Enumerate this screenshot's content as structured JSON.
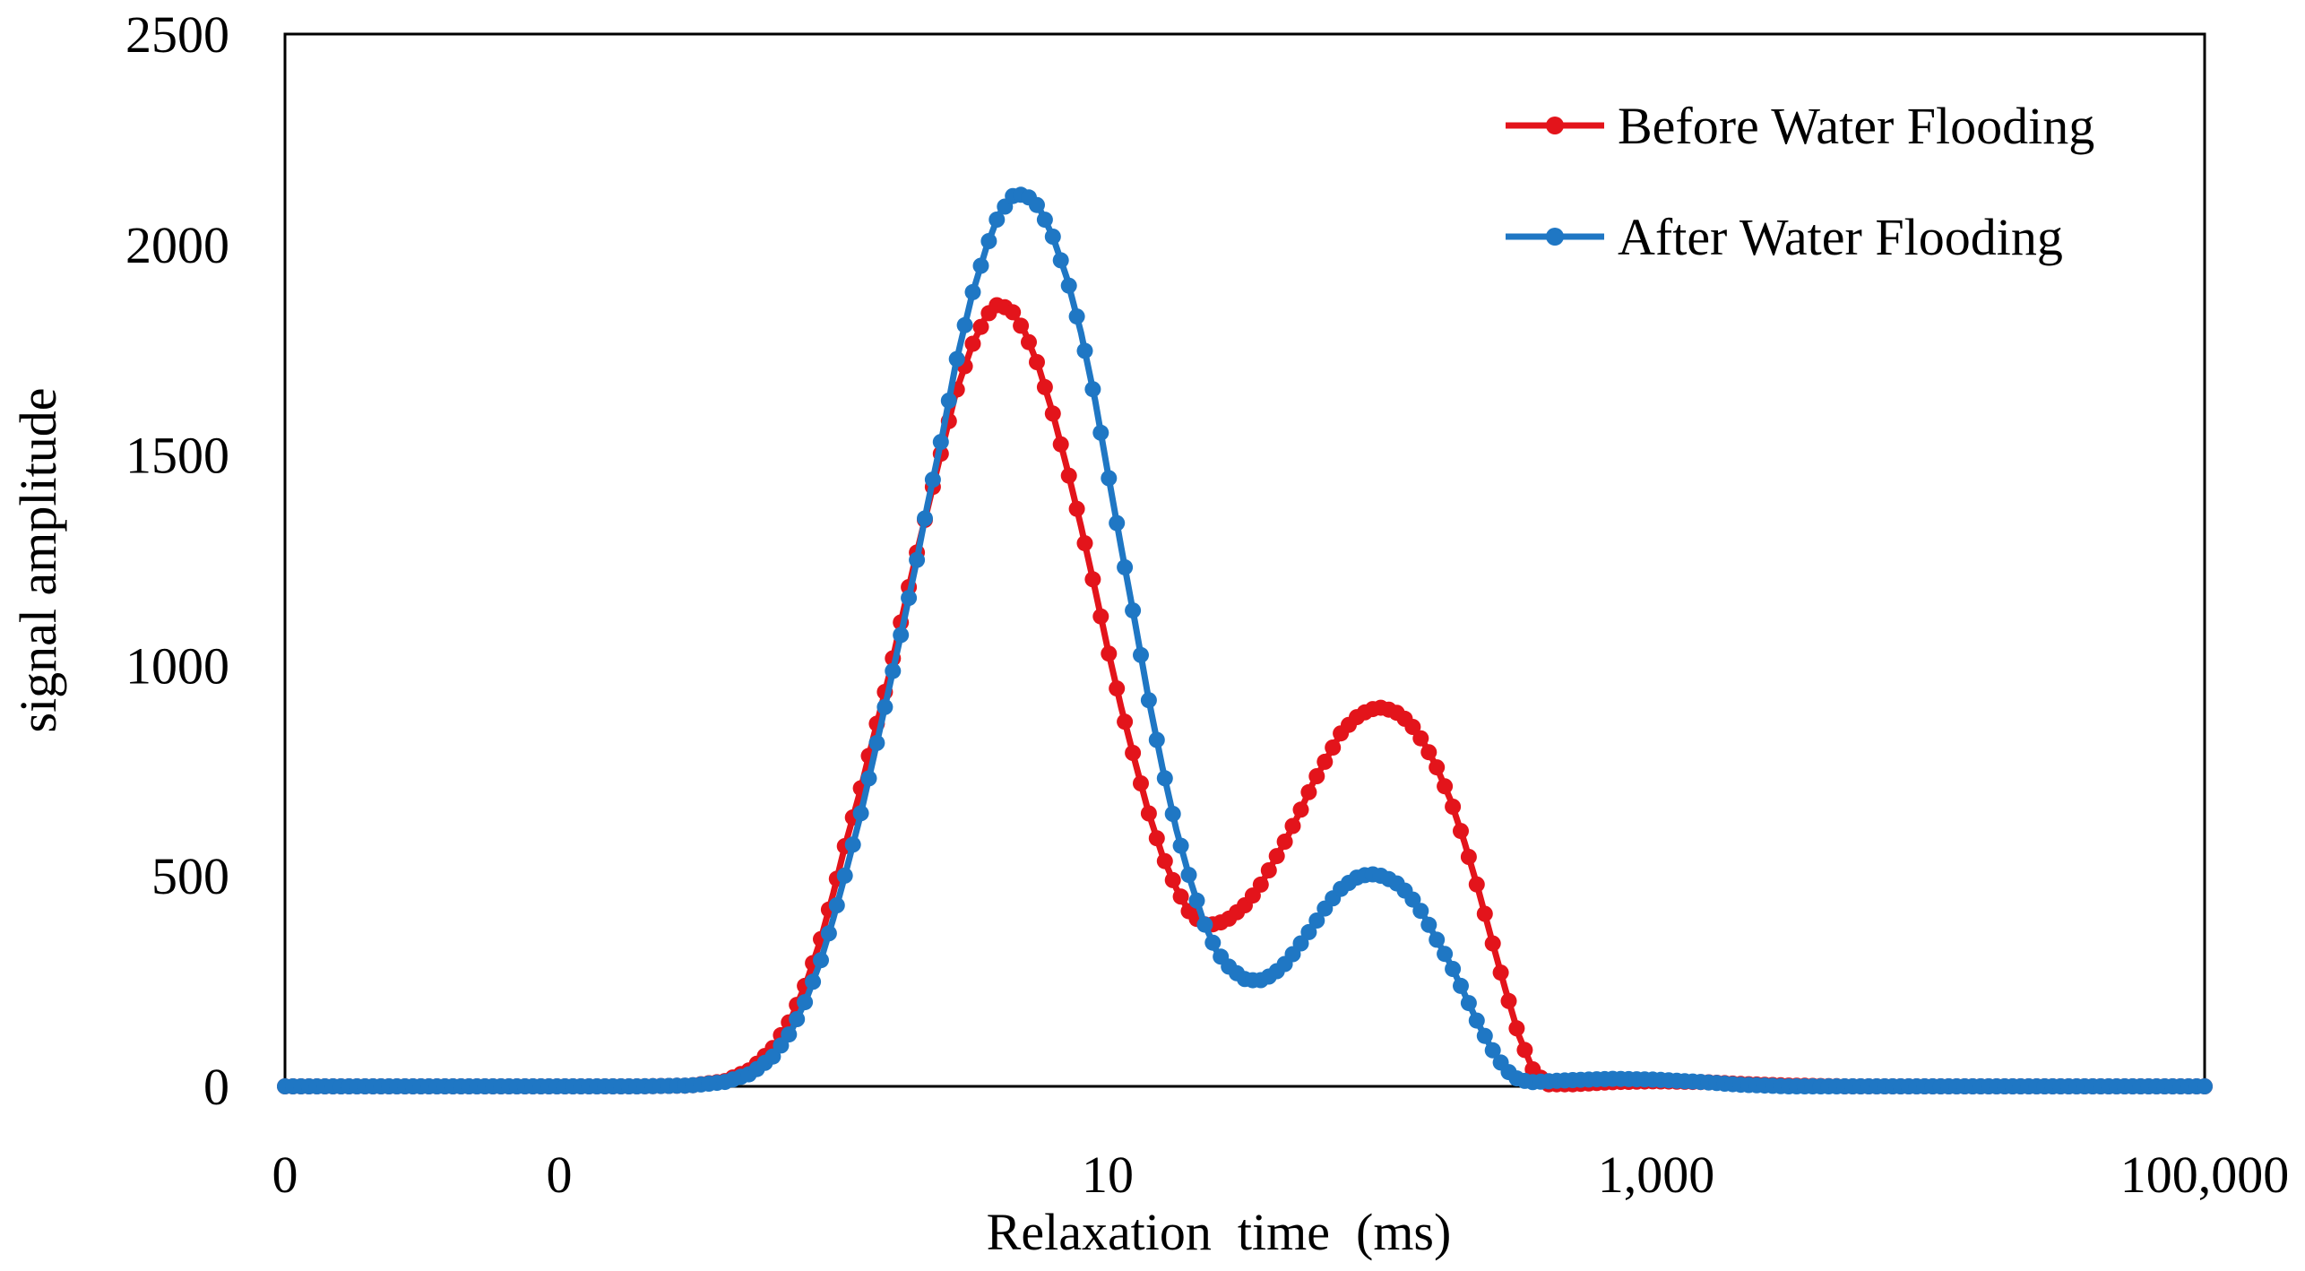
{
  "chart_data": {
    "type": "line",
    "title": "",
    "xlabel": "Relaxation  time  (ms)",
    "ylabel": "signal amplitude",
    "x_scale": "log",
    "xlim": [
      0.01,
      100000
    ],
    "ylim": [
      0,
      2500
    ],
    "x_ticks": [
      0.01,
      0.1,
      10,
      1000,
      100000
    ],
    "x_tick_labels": [
      "0",
      "0",
      "10",
      "1,000",
      "100,000"
    ],
    "y_ticks": [
      0,
      500,
      1000,
      1500,
      2000,
      2500
    ],
    "y_tick_labels": [
      "0",
      "500",
      "1000",
      "1500",
      "2000",
      "2500"
    ],
    "grid": false,
    "legend_position": "top-right",
    "series": [
      {
        "name": "Before Water Flooding",
        "color": "#e3141b",
        "points": [
          [
            0.01,
            0
          ],
          [
            0.02,
            0
          ],
          [
            0.05,
            0
          ],
          [
            0.1,
            0
          ],
          [
            0.2,
            0
          ],
          [
            0.3,
            2
          ],
          [
            0.4,
            12
          ],
          [
            0.5,
            40
          ],
          [
            0.6,
            90
          ],
          [
            0.7,
            160
          ],
          [
            0.8,
            250
          ],
          [
            0.9,
            350
          ],
          [
            1.0,
            460
          ],
          [
            1.1,
            570
          ],
          [
            1.25,
            700
          ],
          [
            1.4,
            830
          ],
          [
            1.6,
            980
          ],
          [
            1.8,
            1130
          ],
          [
            2.0,
            1260
          ],
          [
            2.2,
            1370
          ],
          [
            2.5,
            1520
          ],
          [
            2.8,
            1650
          ],
          [
            3.2,
            1760
          ],
          [
            3.6,
            1830
          ],
          [
            4.0,
            1860
          ],
          [
            4.5,
            1840
          ],
          [
            5.0,
            1790
          ],
          [
            5.6,
            1710
          ],
          [
            6.3,
            1600
          ],
          [
            7.1,
            1470
          ],
          [
            8.0,
            1330
          ],
          [
            9.0,
            1180
          ],
          [
            10.0,
            1040
          ],
          [
            11.2,
            900
          ],
          [
            12.6,
            770
          ],
          [
            14.1,
            650
          ],
          [
            15.8,
            550
          ],
          [
            17.8,
            470
          ],
          [
            20.0,
            410
          ],
          [
            22.4,
            385
          ],
          [
            25.0,
            385
          ],
          [
            28.0,
            400
          ],
          [
            31.6,
            430
          ],
          [
            35.5,
            470
          ],
          [
            40.0,
            530
          ],
          [
            45.0,
            590
          ],
          [
            50.0,
            650
          ],
          [
            56.0,
            720
          ],
          [
            63.0,
            780
          ],
          [
            71.0,
            840
          ],
          [
            80.0,
            875
          ],
          [
            90.0,
            895
          ],
          [
            100.0,
            900
          ],
          [
            112.0,
            890
          ],
          [
            126.0,
            865
          ],
          [
            141.0,
            820
          ],
          [
            158.0,
            760
          ],
          [
            178.0,
            680
          ],
          [
            200.0,
            580
          ],
          [
            224.0,
            470
          ],
          [
            251.0,
            350
          ],
          [
            282.0,
            230
          ],
          [
            316.0,
            120
          ],
          [
            355.0,
            40
          ],
          [
            400.0,
            5
          ],
          [
            500.0,
            5
          ],
          [
            700.0,
            10
          ],
          [
            1000.0,
            12
          ],
          [
            1500.0,
            10
          ],
          [
            2000.0,
            6
          ],
          [
            3000.0,
            2
          ],
          [
            5000.0,
            0
          ],
          [
            10000.0,
            0
          ],
          [
            30000.0,
            0
          ],
          [
            100000.0,
            0
          ]
        ]
      },
      {
        "name": "After Water Flooding",
        "color": "#1f77c4",
        "points": [
          [
            0.01,
            0
          ],
          [
            0.02,
            0
          ],
          [
            0.05,
            0
          ],
          [
            0.1,
            0
          ],
          [
            0.2,
            0
          ],
          [
            0.3,
            2
          ],
          [
            0.4,
            10
          ],
          [
            0.5,
            30
          ],
          [
            0.6,
            70
          ],
          [
            0.7,
            130
          ],
          [
            0.8,
            210
          ],
          [
            0.9,
            300
          ],
          [
            1.0,
            400
          ],
          [
            1.1,
            500
          ],
          [
            1.25,
            640
          ],
          [
            1.4,
            780
          ],
          [
            1.6,
            950
          ],
          [
            1.8,
            1100
          ],
          [
            2.0,
            1240
          ],
          [
            2.2,
            1380
          ],
          [
            2.5,
            1550
          ],
          [
            2.8,
            1720
          ],
          [
            3.2,
            1880
          ],
          [
            3.6,
            1990
          ],
          [
            4.0,
            2070
          ],
          [
            4.5,
            2115
          ],
          [
            5.0,
            2120
          ],
          [
            5.6,
            2090
          ],
          [
            6.3,
            2020
          ],
          [
            7.1,
            1920
          ],
          [
            8.0,
            1790
          ],
          [
            9.0,
            1630
          ],
          [
            10.0,
            1460
          ],
          [
            11.2,
            1280
          ],
          [
            12.6,
            1100
          ],
          [
            14.1,
            920
          ],
          [
            15.8,
            760
          ],
          [
            17.8,
            610
          ],
          [
            20.0,
            490
          ],
          [
            22.4,
            390
          ],
          [
            25.0,
            320
          ],
          [
            28.0,
            280
          ],
          [
            31.6,
            255
          ],
          [
            35.5,
            250
          ],
          [
            40.0,
            265
          ],
          [
            45.0,
            295
          ],
          [
            50.0,
            335
          ],
          [
            56.0,
            380
          ],
          [
            63.0,
            430
          ],
          [
            71.0,
            470
          ],
          [
            80.0,
            495
          ],
          [
            90.0,
            505
          ],
          [
            100.0,
            500
          ],
          [
            112.0,
            485
          ],
          [
            126.0,
            455
          ],
          [
            141.0,
            410
          ],
          [
            158.0,
            350
          ],
          [
            178.0,
            290
          ],
          [
            200.0,
            220
          ],
          [
            224.0,
            150
          ],
          [
            251.0,
            90
          ],
          [
            282.0,
            40
          ],
          [
            316.0,
            15
          ],
          [
            355.0,
            10
          ],
          [
            400.0,
            12
          ],
          [
            500.0,
            15
          ],
          [
            700.0,
            18
          ],
          [
            1000.0,
            16
          ],
          [
            1500.0,
            10
          ],
          [
            2000.0,
            4
          ],
          [
            3000.0,
            0
          ],
          [
            5000.0,
            0
          ],
          [
            10000.0,
            0
          ],
          [
            30000.0,
            0
          ],
          [
            100000.0,
            0
          ]
        ]
      }
    ]
  }
}
